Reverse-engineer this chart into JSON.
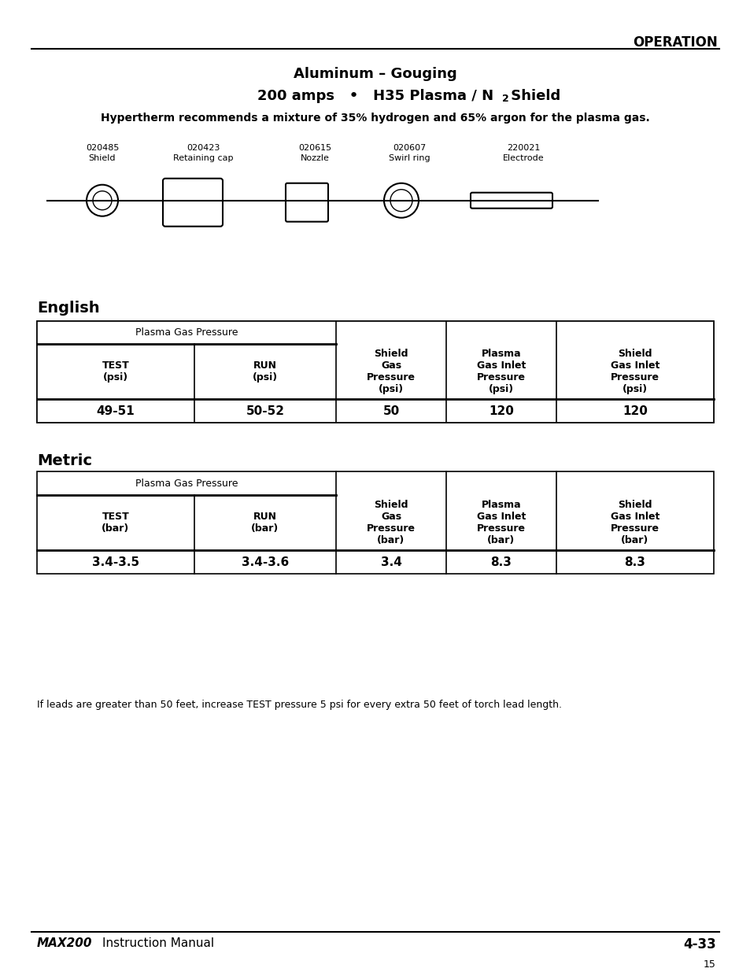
{
  "page_header": "OPERATION",
  "title_line1": "Aluminum – Gouging",
  "title_line2_pre": "200 amps",
  "title_line2_bullet": "•",
  "title_line2_mid": "H35 Plasma / N",
  "title_line2_sub": "2",
  "title_line2_post": " Shield",
  "subtitle": "Hypertherm recommends a mixture of 35% hydrogen and 65% argon for the plasma gas.",
  "parts": [
    {
      "part_num": "020485",
      "part_name": "Shield"
    },
    {
      "part_num": "020423",
      "part_name": "Retaining cap"
    },
    {
      "part_num": "020615",
      "part_name": "Nozzle"
    },
    {
      "part_num": "020607",
      "part_name": "Swirl ring"
    },
    {
      "part_num": "220021",
      "part_name": "Electrode"
    }
  ],
  "english_section": "English",
  "english_table": {
    "col_span_header": "Plasma Gas Pressure",
    "col1_header": "TEST\n(psi)",
    "col2_header": "RUN\n(psi)",
    "col3_header": "Shield\nGas\nPressure\n(psi)",
    "col4_header": "Plasma\nGas Inlet\nPressure\n(psi)",
    "col5_header": "Shield\nGas Inlet\nPressure\n(psi)",
    "col1_val": "49-51",
    "col2_val": "50-52",
    "col3_val": "50",
    "col4_val": "120",
    "col5_val": "120"
  },
  "metric_section": "Metric",
  "metric_table": {
    "col_span_header": "Plasma Gas Pressure",
    "col1_header": "TEST\n(bar)",
    "col2_header": "RUN\n(bar)",
    "col3_header": "Shield\nGas\nPressure\n(bar)",
    "col4_header": "Plasma\nGas Inlet\nPressure\n(bar)",
    "col5_header": "Shield\nGas Inlet\nPressure\n(bar)",
    "col1_val": "3.4-3.5",
    "col2_val": "3.4-3.6",
    "col3_val": "3.4",
    "col4_val": "8.3",
    "col5_val": "8.3"
  },
  "footnote": "If leads are greater than 50 feet, increase TEST pressure 5 psi for every extra 50 feet of torch lead length.",
  "footer_left_bold": "MAX200",
  "footer_left_normal": "  Instruction Manual",
  "footer_right": "4-33",
  "footer_page_num": "15",
  "bg_color": "#ffffff",
  "text_color": "#000000",
  "table_line_color": "#000000"
}
